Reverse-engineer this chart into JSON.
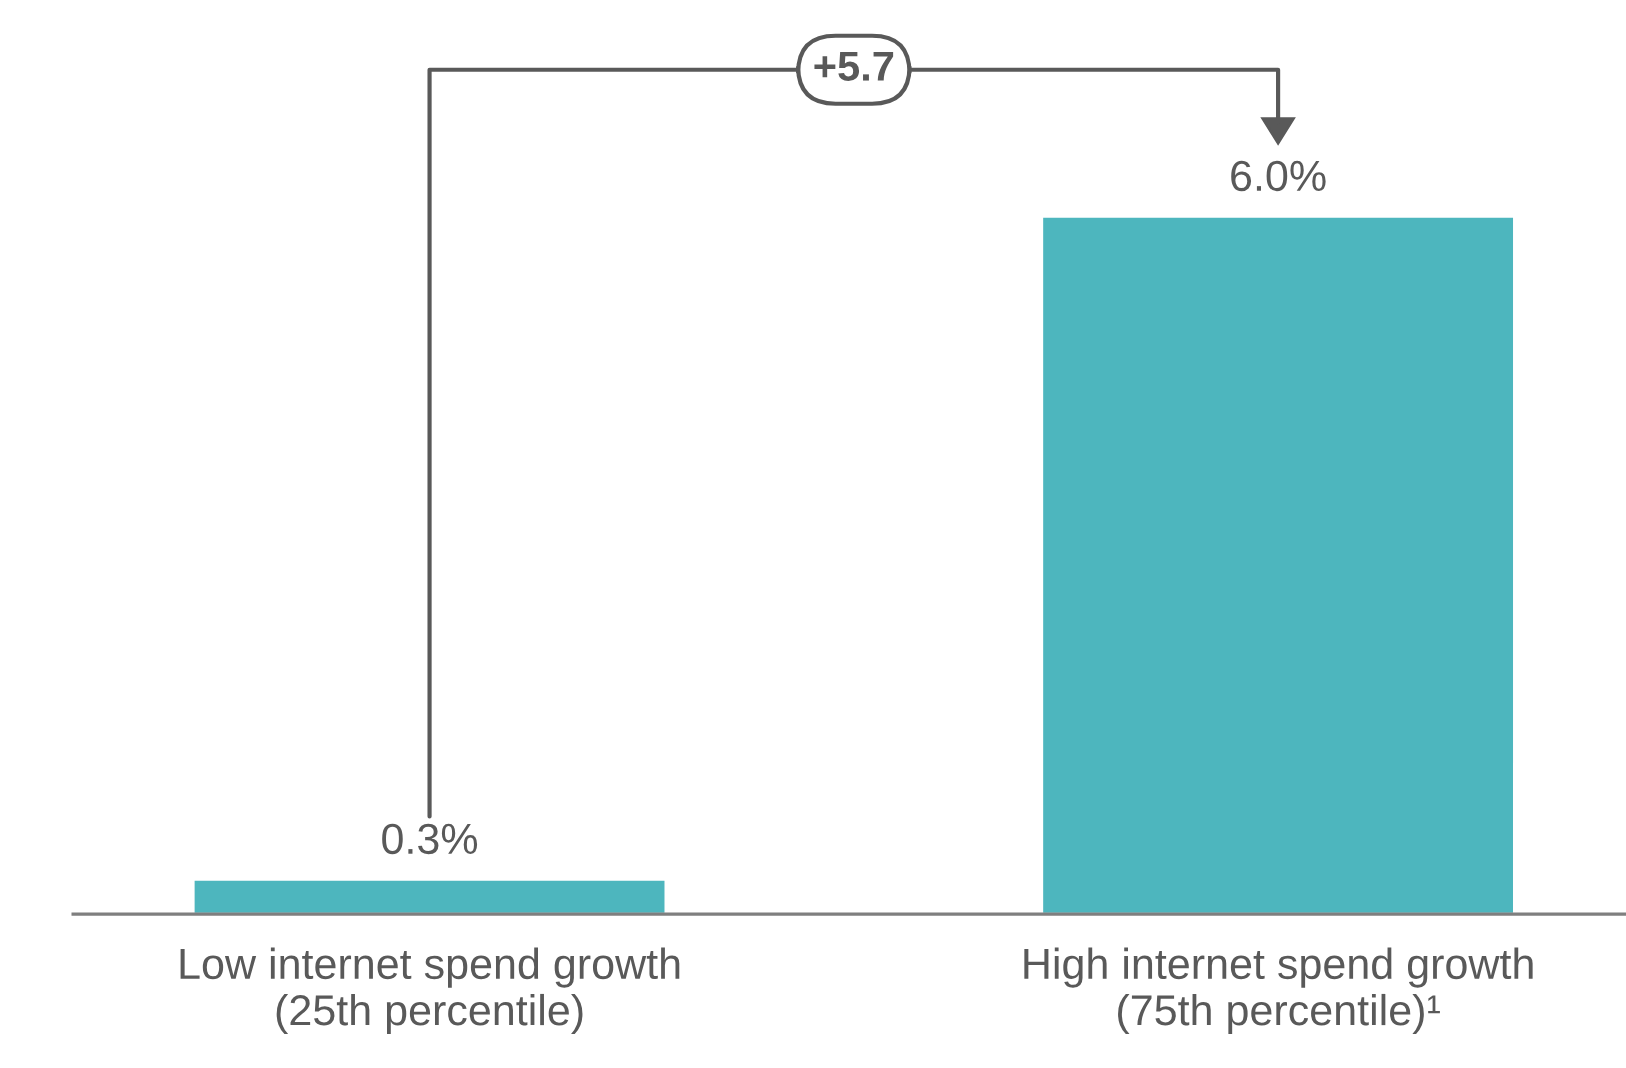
{
  "chart_data": {
    "type": "bar",
    "categories": [
      "Low internet spend growth\n(25th percentile)",
      "High internet spend growth\n(75th percentile)¹"
    ],
    "values": [
      0.3,
      6.0
    ],
    "color": "#4db6be",
    "value_labels": [
      "0.3%",
      "6.0%"
    ],
    "annotations": [
      "+5.7"
    ]
  }
}
